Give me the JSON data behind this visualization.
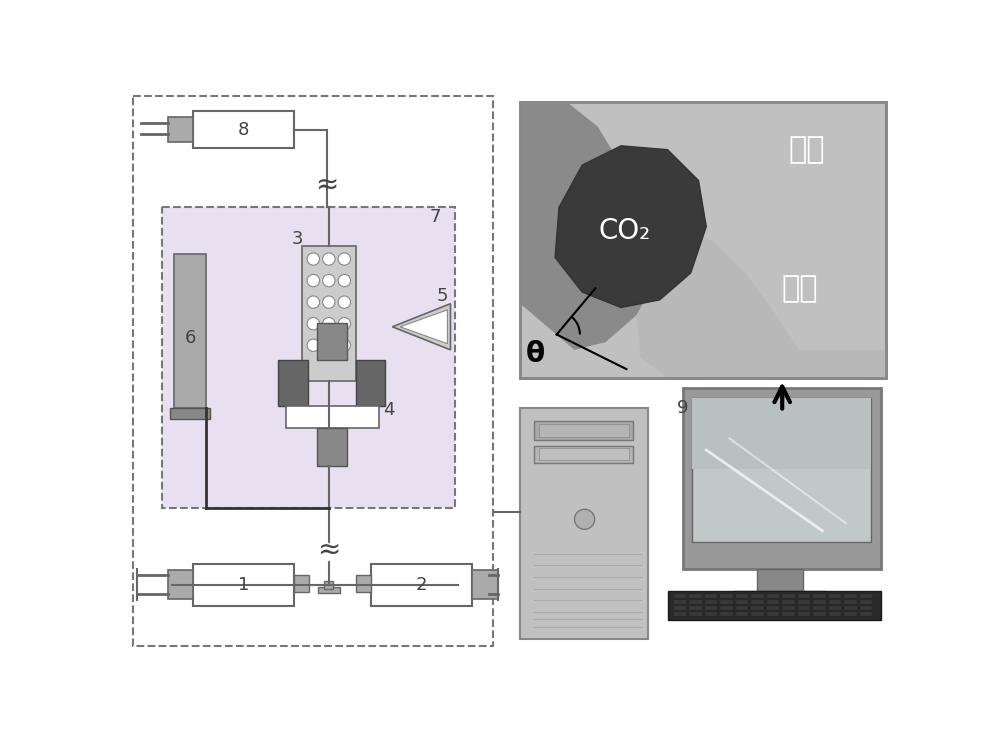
{
  "bg_color": "#ffffff",
  "co2_label": "CO₂",
  "yanxin_label": "岩芯",
  "yanshui_label": "盐水",
  "theta_label": "θ",
  "inner_box_color": "#e8dff0",
  "outer_box_color": "#f0f0f0"
}
